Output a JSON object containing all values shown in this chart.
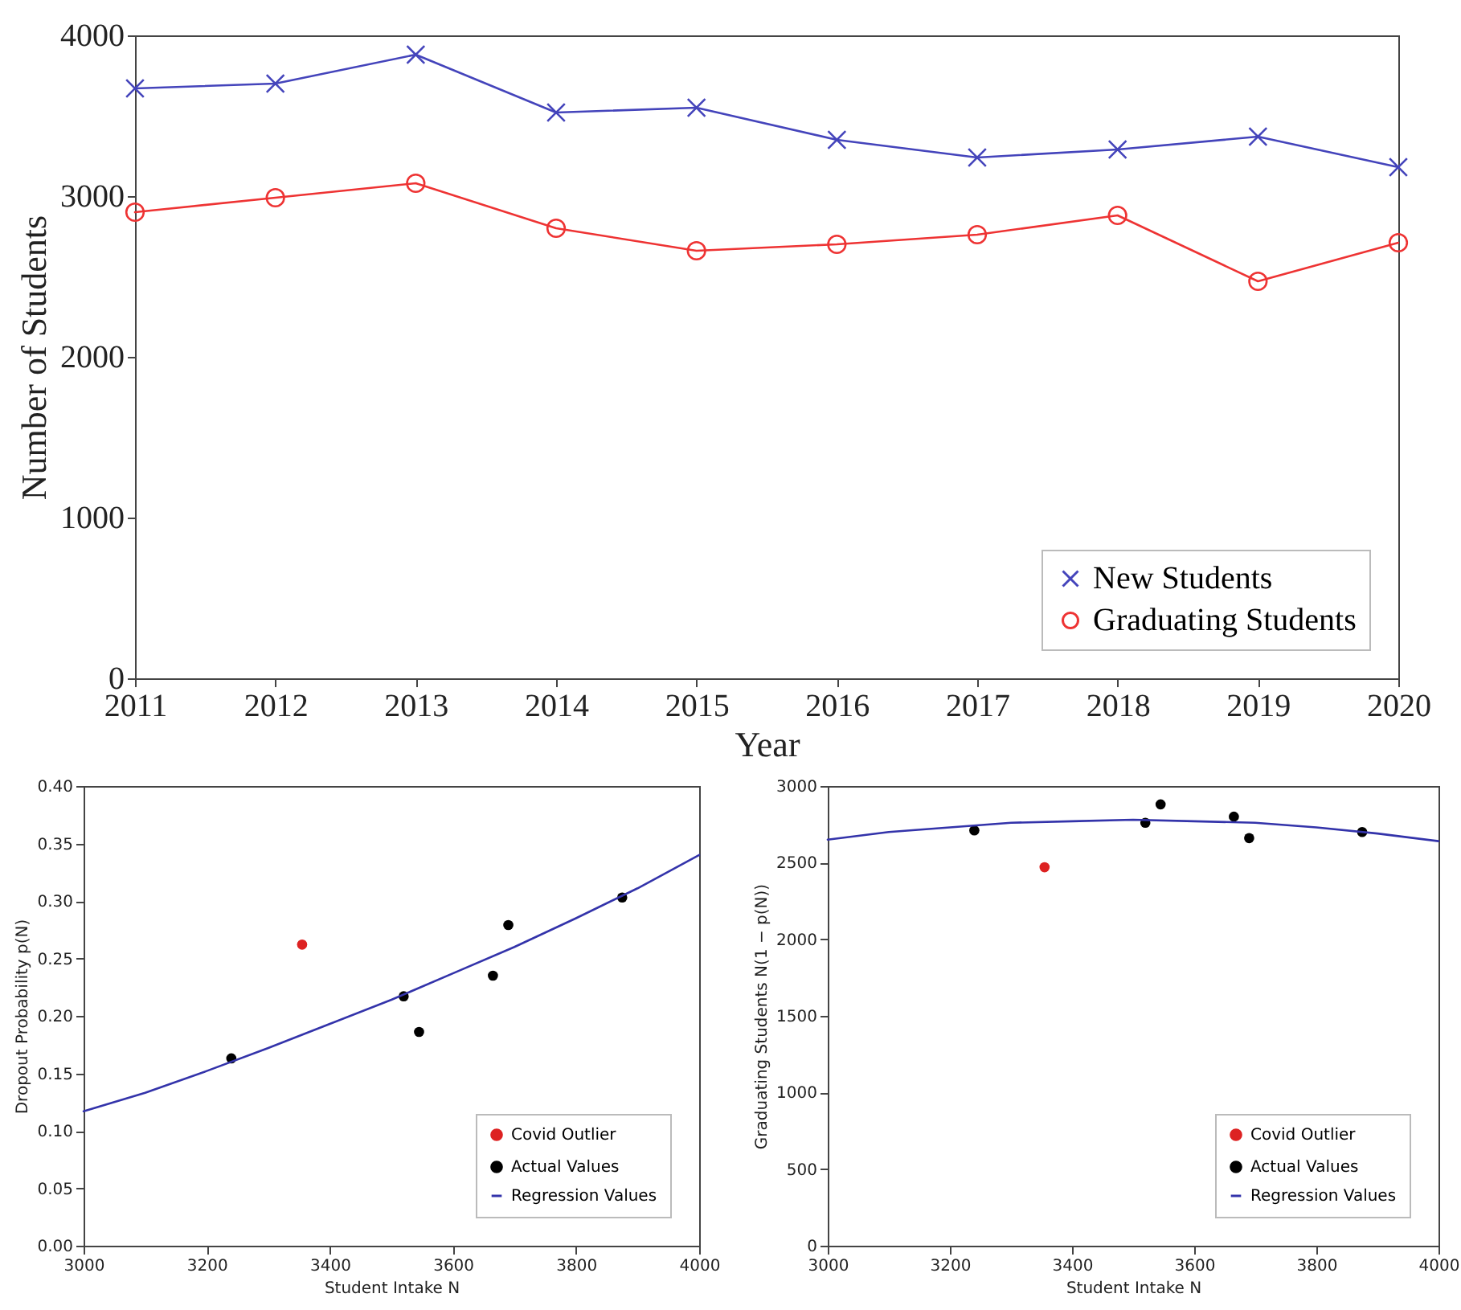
{
  "chart_data": [
    {
      "type": "line",
      "xlabel": "Year",
      "ylabel": "Number of Students",
      "x": [
        2011,
        2012,
        2013,
        2014,
        2015,
        2016,
        2017,
        2018,
        2019,
        2020
      ],
      "xlim": [
        2011,
        2020
      ],
      "xticks": [
        2011,
        2012,
        2013,
        2014,
        2015,
        2016,
        2017,
        2018,
        2019,
        2020
      ],
      "ylim": [
        0,
        4000
      ],
      "yticks": [
        0,
        1000,
        2000,
        3000,
        4000
      ],
      "grid": false,
      "legend": "bottom right",
      "series": [
        {
          "name": "New Students",
          "color": "#4444bb",
          "marker": "cross",
          "values": [
            3670,
            3700,
            3880,
            3520,
            3550,
            3350,
            3240,
            3290,
            3370,
            3180
          ]
        },
        {
          "name": "Graduating Students",
          "color": "#ee3333",
          "marker": "circle",
          "values": [
            2900,
            2990,
            3080,
            2800,
            2660,
            2700,
            2760,
            2880,
            2470,
            2710
          ]
        }
      ]
    },
    {
      "type": "scatter",
      "xlabel": "Student Intake N",
      "ylabel": "Dropout Probability p(N)",
      "xlim": [
        3000,
        4000
      ],
      "xticks": [
        3000,
        3200,
        3400,
        3600,
        3800,
        4000
      ],
      "ylim": [
        0,
        0.4
      ],
      "yticks": [
        {
          "value": 0,
          "label": "0.00"
        },
        {
          "value": 0.05,
          "label": "0.05"
        },
        {
          "value": 0.1,
          "label": "0.10"
        },
        {
          "value": 0.15,
          "label": "0.15"
        },
        {
          "value": 0.2,
          "label": "0.20"
        },
        {
          "value": 0.25,
          "label": "0.25"
        },
        {
          "value": 0.3,
          "label": "0.30"
        },
        {
          "value": 0.35,
          "label": "0.35"
        },
        {
          "value": 0.4,
          "label": "0.40"
        }
      ],
      "grid": false,
      "legend": "bottom right",
      "series": [
        {
          "name": "Covid Outlier",
          "type": "scatter",
          "color": "#dd2222",
          "marker": "circle",
          "x": [
            3355
          ],
          "values": [
            0.262
          ]
        },
        {
          "name": "Actual Values",
          "type": "scatter",
          "color": "#000000",
          "marker": "circle",
          "x": [
            3240,
            3520,
            3545,
            3665,
            3690,
            3875
          ],
          "values": [
            0.163,
            0.217,
            0.186,
            0.235,
            0.279,
            0.303
          ]
        },
        {
          "name": "Regression Values",
          "type": "line",
          "color": "#3333aa",
          "marker": "none",
          "x": [
            3000,
            3100,
            3200,
            3300,
            3400,
            3500,
            3600,
            3700,
            3800,
            3900,
            4000
          ],
          "values": [
            0.117,
            0.133,
            0.152,
            0.172,
            0.193,
            0.214,
            0.237,
            0.26,
            0.285,
            0.311,
            0.34
          ]
        }
      ]
    },
    {
      "type": "scatter",
      "xlabel": "Student Intake N",
      "ylabel": "Graduating Students N(1 − p(N))",
      "xlim": [
        3000,
        4000
      ],
      "xticks": [
        3000,
        3200,
        3400,
        3600,
        3800,
        4000
      ],
      "ylim": [
        0,
        3000
      ],
      "yticks": [
        0,
        500,
        1000,
        1500,
        2000,
        2500,
        3000
      ],
      "grid": false,
      "legend": "bottom right",
      "series": [
        {
          "name": "Covid Outlier",
          "type": "scatter",
          "color": "#dd2222",
          "marker": "circle",
          "x": [
            3355
          ],
          "values": [
            2470
          ]
        },
        {
          "name": "Actual Values",
          "type": "scatter",
          "color": "#000000",
          "marker": "circle",
          "x": [
            3240,
            3520,
            3545,
            3665,
            3690,
            3875
          ],
          "values": [
            2710,
            2760,
            2880,
            2800,
            2660,
            2700
          ]
        },
        {
          "name": "Regression Values",
          "type": "line",
          "color": "#3333aa",
          "marker": "none",
          "x": [
            3000,
            3100,
            3200,
            3300,
            3400,
            3500,
            3600,
            3700,
            3800,
            3900,
            4000
          ],
          "values": [
            2650,
            2700,
            2730,
            2760,
            2770,
            2780,
            2770,
            2760,
            2730,
            2690,
            2640
          ]
        }
      ]
    }
  ]
}
